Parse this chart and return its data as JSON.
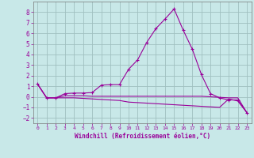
{
  "xlabel": "Windchill (Refroidissement éolien,°C)",
  "background_color": "#c8e8e8",
  "grid_color": "#a0c0c0",
  "line_color": "#990099",
  "x": [
    0,
    1,
    2,
    3,
    4,
    5,
    6,
    7,
    8,
    9,
    10,
    11,
    12,
    13,
    14,
    15,
    16,
    17,
    18,
    19,
    20,
    21,
    22,
    23
  ],
  "y_peak": [
    1.2,
    -0.1,
    -0.1,
    0.3,
    0.35,
    0.35,
    0.4,
    1.1,
    1.15,
    1.15,
    2.6,
    3.5,
    5.15,
    6.45,
    7.35,
    8.3,
    6.3,
    4.5,
    2.1,
    0.3,
    -0.1,
    -0.3,
    -0.3,
    -1.5
  ],
  "y_flat": [
    1.2,
    -0.1,
    -0.1,
    0.1,
    0.1,
    0.1,
    0.05,
    0.05,
    0.05,
    0.05,
    0.05,
    0.05,
    0.05,
    0.05,
    0.05,
    0.05,
    0.05,
    0.05,
    0.05,
    0.0,
    -0.05,
    -0.1,
    -0.1,
    -1.5
  ],
  "y_decline": [
    1.2,
    -0.1,
    -0.1,
    -0.1,
    -0.1,
    -0.15,
    -0.2,
    -0.25,
    -0.3,
    -0.35,
    -0.5,
    -0.55,
    -0.6,
    -0.65,
    -0.7,
    -0.75,
    -0.8,
    -0.85,
    -0.9,
    -0.95,
    -1.0,
    -0.2,
    -0.4,
    -1.5
  ],
  "xlim": [
    -0.5,
    23.5
  ],
  "ylim": [
    -2.5,
    9.0
  ],
  "yticks": [
    -2,
    -1,
    0,
    1,
    2,
    3,
    4,
    5,
    6,
    7,
    8
  ],
  "xticks": [
    0,
    1,
    2,
    3,
    4,
    5,
    6,
    7,
    8,
    9,
    10,
    11,
    12,
    13,
    14,
    15,
    16,
    17,
    18,
    19,
    20,
    21,
    22,
    23
  ]
}
